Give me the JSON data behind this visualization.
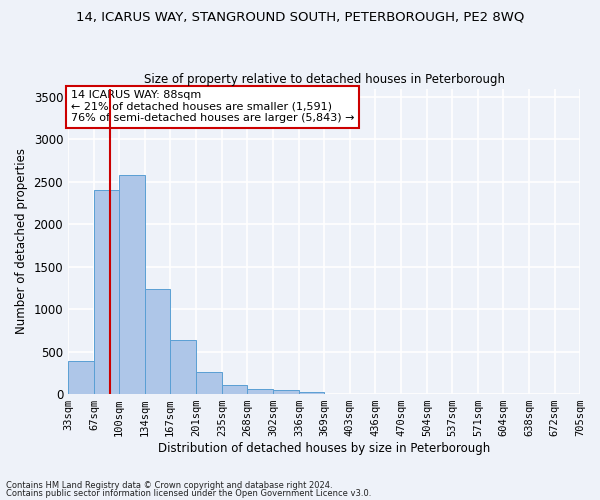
{
  "title": "14, ICARUS WAY, STANGROUND SOUTH, PETERBOROUGH, PE2 8WQ",
  "subtitle": "Size of property relative to detached houses in Peterborough",
  "xlabel": "Distribution of detached houses by size in Peterborough",
  "ylabel": "Number of detached properties",
  "footnote1": "Contains HM Land Registry data © Crown copyright and database right 2024.",
  "footnote2": "Contains public sector information licensed under the Open Government Licence v3.0.",
  "annotation_title": "14 ICARUS WAY: 88sqm",
  "annotation_line1": "← 21% of detached houses are smaller (1,591)",
  "annotation_line2": "76% of semi-detached houses are larger (5,843) →",
  "bar_edges": [
    33,
    67,
    100,
    134,
    167,
    201,
    235,
    268,
    302,
    336,
    369,
    403,
    436,
    470,
    504,
    537,
    571,
    604,
    638,
    672,
    705
  ],
  "bar_heights": [
    390,
    2400,
    2580,
    1240,
    635,
    260,
    105,
    55,
    50,
    25,
    0,
    0,
    0,
    0,
    0,
    0,
    0,
    0,
    0,
    0
  ],
  "bar_color": "#aec6e8",
  "bar_edge_color": "#5a9fd4",
  "property_line_x": 88,
  "property_line_color": "#cc0000",
  "ylim": [
    0,
    3600
  ],
  "yticks": [
    0,
    500,
    1000,
    1500,
    2000,
    2500,
    3000,
    3500
  ],
  "bg_color": "#eef2f9",
  "grid_color": "#ffffff",
  "annotation_box_color": "#ffffff",
  "annotation_box_edge": "#cc0000"
}
